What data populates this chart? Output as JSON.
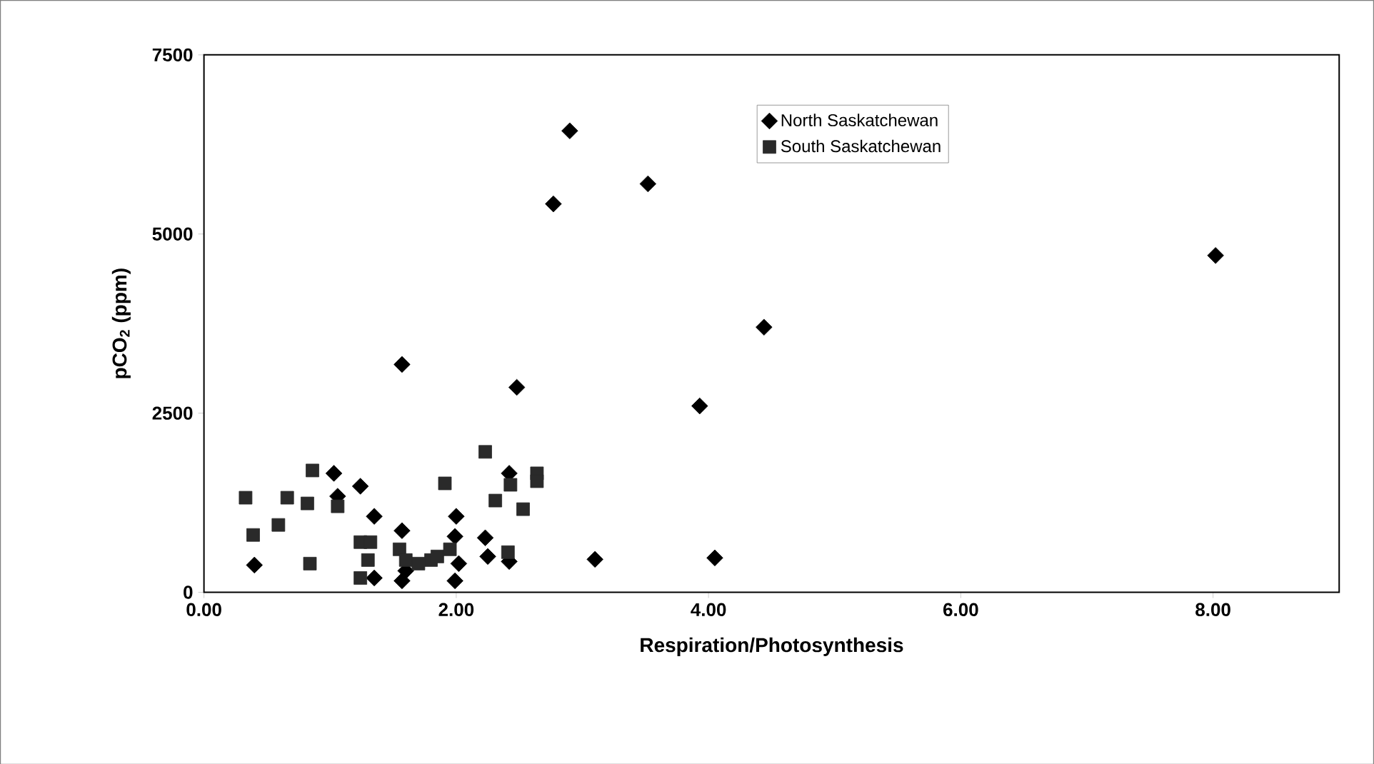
{
  "chart_data": {
    "type": "scatter",
    "xlabel": "Respiration/Photosynthesis",
    "ylabel": "pCO$_{2}$ (ppm)",
    "xlim": [
      0,
      9
    ],
    "ylim": [
      0,
      7500
    ],
    "xticks": [
      {
        "value": 0,
        "label": "0.00"
      },
      {
        "value": 2,
        "label": "2.00"
      },
      {
        "value": 4,
        "label": "4.00"
      },
      {
        "value": 6,
        "label": "6.00"
      },
      {
        "value": 8,
        "label": "8.00"
      }
    ],
    "yticks": [
      0,
      2500,
      5000,
      7500
    ],
    "grid": false,
    "legend": "top right",
    "series": [
      {
        "name": "North Saskatchewan",
        "color": "#000000",
        "marker": "diamond",
        "x": [
          0.4,
          1.03,
          1.06,
          1.24,
          1.35,
          1.35,
          1.57,
          1.57,
          1.57,
          1.6,
          1.99,
          2.0,
          1.99,
          2.02,
          2.23,
          2.25,
          2.42,
          2.48,
          2.42,
          2.77,
          2.9,
          3.1,
          3.52,
          3.93,
          4.05,
          4.44,
          8.02
        ],
        "values": [
          380,
          1660,
          1340,
          1480,
          1060,
          200,
          860,
          3180,
          160,
          300,
          780,
          1060,
          160,
          400,
          760,
          500,
          1660,
          2860,
          430,
          5420,
          6440,
          460,
          5700,
          2600,
          480,
          3700,
          4700
        ]
      },
      {
        "name": "South Saskatchewan",
        "color": "#2a2a2a",
        "marker": "square",
        "x": [
          0.33,
          0.39,
          0.59,
          0.66,
          0.82,
          0.84,
          0.86,
          1.06,
          1.24,
          1.24,
          1.3,
          1.32,
          1.55,
          1.6,
          1.7,
          1.8,
          1.85,
          1.91,
          1.95,
          2.23,
          2.31,
          2.41,
          2.53,
          2.64,
          2.43,
          2.64
        ],
        "values": [
          1320,
          800,
          940,
          1320,
          1240,
          400,
          1700,
          1200,
          700,
          200,
          450,
          700,
          600,
          450,
          400,
          450,
          500,
          1520,
          600,
          1960,
          1280,
          560,
          1160,
          1660,
          1500,
          1550
        ]
      }
    ]
  }
}
